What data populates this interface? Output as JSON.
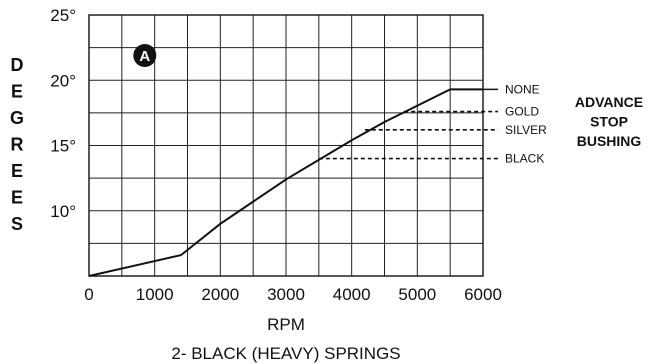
{
  "chart_data": {
    "type": "line",
    "ylabel": "DEGREES",
    "xlabel": "RPM",
    "subtitle": "2- BLACK (HEAVY) SPRINGS",
    "badge": "A",
    "xlim": [
      0,
      6000
    ],
    "ylim": [
      5,
      25
    ],
    "x_ticks": [
      "0",
      "1000",
      "2000",
      "3000",
      "4000",
      "5000",
      "6000"
    ],
    "y_ticks": [
      {
        "value": 25,
        "label": "25°"
      },
      {
        "value": 20,
        "label": "20°"
      },
      {
        "value": 15,
        "label": "15°"
      },
      {
        "value": 10,
        "label": "10°"
      }
    ],
    "grid": true,
    "main_curve": [
      {
        "x": 0,
        "y": 5.0
      },
      {
        "x": 1400,
        "y": 6.6
      },
      {
        "x": 2000,
        "y": 9.0
      },
      {
        "x": 3000,
        "y": 12.4
      },
      {
        "x": 4000,
        "y": 15.4
      },
      {
        "x": 4500,
        "y": 16.8
      },
      {
        "x": 5500,
        "y": 19.3
      },
      {
        "x": 6000,
        "y": 19.3
      }
    ],
    "series": [
      {
        "name": "NONE",
        "start_x": 5500,
        "end_x": 6000,
        "y": 19.3,
        "style": "solid"
      },
      {
        "name": "GOLD",
        "start_x": 4800,
        "end_x": 6000,
        "y": 17.6,
        "style": "dashed"
      },
      {
        "name": "SILVER",
        "start_x": 4200,
        "end_x": 6000,
        "y": 16.2,
        "style": "dashed"
      },
      {
        "name": "BLACK",
        "start_x": 3500,
        "end_x": 6000,
        "y": 14.0,
        "style": "dashed"
      }
    ],
    "legend_title": [
      "ADVANCE",
      "STOP",
      "BUSHING"
    ]
  }
}
